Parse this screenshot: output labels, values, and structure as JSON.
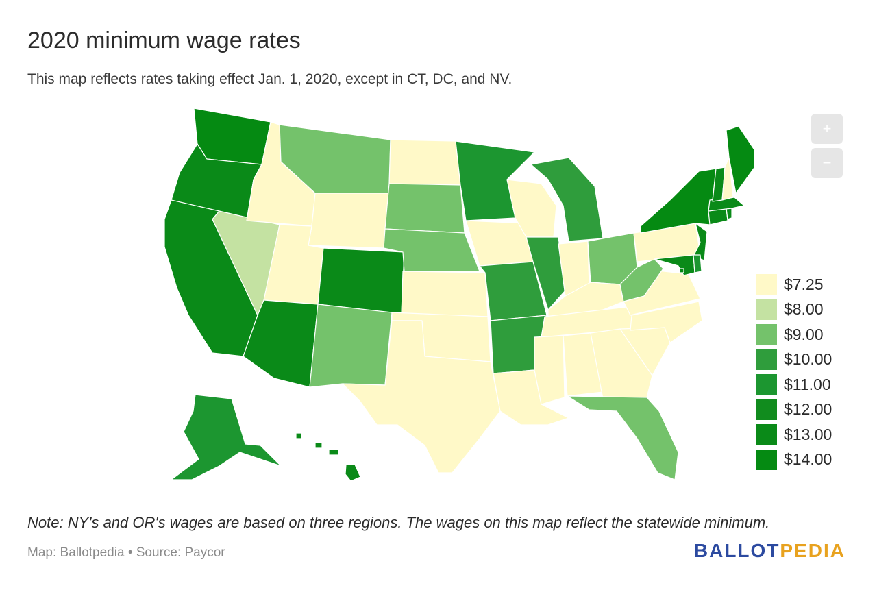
{
  "title": "2020 minimum wage rates",
  "subtitle": "This map reflects rates taking effect Jan. 1, 2020, except in CT, DC, and NV.",
  "zoom": {
    "in_label": "+",
    "out_label": "−"
  },
  "legend": [
    {
      "label": "$7.25",
      "color": "#fff9c8"
    },
    {
      "label": "$8.00",
      "color": "#c4e2a2"
    },
    {
      "label": "$9.00",
      "color": "#74c26b"
    },
    {
      "label": "$10.00",
      "color": "#2f9d3c"
    },
    {
      "label": "$11.00",
      "color": "#1c9630"
    },
    {
      "label": "$12.00",
      "color": "#118c1e"
    },
    {
      "label": "$13.00",
      "color": "#0a8a18"
    },
    {
      "label": "$14.00",
      "color": "#058a12"
    }
  ],
  "state_colors": {
    "WA": "#058a12",
    "OR": "#0a8a18",
    "CA": "#0a8a18",
    "AK": "#1c9630",
    "HI": "#0a8a18",
    "AZ": "#0a8a18",
    "CO": "#0a8a18",
    "NV": "#c4e2a2",
    "MT": "#74c26b",
    "NM": "#74c26b",
    "SD": "#74c26b",
    "NE": "#74c26b",
    "MN": "#1c9630",
    "MO": "#2f9d3c",
    "AR": "#2f9d3c",
    "IL": "#2f9d3c",
    "MI": "#2f9d3c",
    "OH": "#74c26b",
    "WV": "#74c26b",
    "FL": "#74c26b",
    "NY": "#058a12",
    "VT": "#0a8a18",
    "ME": "#058a12",
    "MA": "#0a8a18",
    "CT": "#0a8a18",
    "RI": "#0a8a18",
    "NJ": "#0a8a18",
    "MD": "#0a8a18",
    "DE": "#1c9630",
    "DC": "#058a12",
    "ID": "#fff9c8",
    "WY": "#fff9c8",
    "UT": "#fff9c8",
    "ND": "#fff9c8",
    "KS": "#fff9c8",
    "OK": "#fff9c8",
    "TX": "#fff9c8",
    "IA": "#fff9c8",
    "WI": "#fff9c8",
    "IN": "#fff9c8",
    "KY": "#fff9c8",
    "TN": "#fff9c8",
    "MS": "#fff9c8",
    "AL": "#fff9c8",
    "GA": "#fff9c8",
    "SC": "#fff9c8",
    "NC": "#fff9c8",
    "VA": "#fff9c8",
    "PA": "#fff9c8",
    "NH": "#fff9c8",
    "LA": "#fff9c8"
  },
  "note": "Note: NY's and OR's wages are based on three regions. The wages on this map reflect the statewide minimum.",
  "credits": "Map: Ballotpedia • Source: Paycor",
  "logo": {
    "part1": "BALLOT",
    "part2": "PEDIA"
  }
}
